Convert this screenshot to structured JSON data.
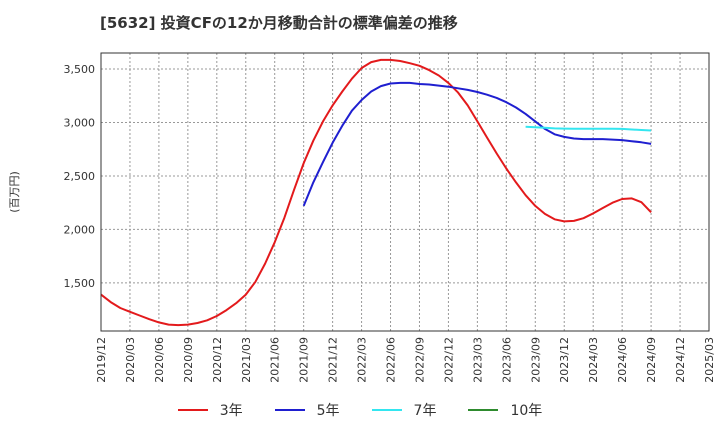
{
  "chart_data": {
    "type": "line",
    "title": "[5632]  投資CFの12か月移動合計の標準偏差の推移",
    "ylabel": "(百万円)",
    "xlabel": "",
    "ylim": [
      1050,
      3650
    ],
    "yticks": [
      1500,
      2000,
      2500,
      3000,
      3500
    ],
    "ytick_labels": [
      "1,500",
      "2,000",
      "2,500",
      "3,000",
      "3,500"
    ],
    "xticks": [
      "2019/12",
      "2020/03",
      "2020/06",
      "2020/09",
      "2020/12",
      "2021/03",
      "2021/06",
      "2021/09",
      "2021/12",
      "2022/03",
      "2022/06",
      "2022/09",
      "2022/12",
      "2023/03",
      "2023/06",
      "2023/09",
      "2023/12",
      "2024/03",
      "2024/06",
      "2024/09",
      "2024/12",
      "2025/03"
    ],
    "grid": true,
    "legend_position": "bottom",
    "series": [
      {
        "name": "3年",
        "color": "#e31a1c",
        "x": [
          "2019/12",
          "2020/01",
          "2020/02",
          "2020/03",
          "2020/04",
          "2020/05",
          "2020/06",
          "2020/07",
          "2020/08",
          "2020/09",
          "2020/10",
          "2020/11",
          "2020/12",
          "2021/01",
          "2021/02",
          "2021/03",
          "2021/04",
          "2021/05",
          "2021/06",
          "2021/07",
          "2021/08",
          "2021/09",
          "2021/10",
          "2021/11",
          "2021/12",
          "2022/01",
          "2022/02",
          "2022/03",
          "2022/04",
          "2022/05",
          "2022/06",
          "2022/07",
          "2022/08",
          "2022/09",
          "2022/10",
          "2022/11",
          "2022/12",
          "2023/01",
          "2023/02",
          "2023/03",
          "2023/04",
          "2023/05",
          "2023/06",
          "2023/07",
          "2023/08",
          "2023/09",
          "2023/10",
          "2023/11",
          "2023/12",
          "2024/01",
          "2024/02",
          "2024/03",
          "2024/04",
          "2024/05",
          "2024/06",
          "2024/07",
          "2024/08",
          "2024/09"
        ],
        "values": [
          1390,
          1320,
          1265,
          1230,
          1195,
          1160,
          1130,
          1110,
          1105,
          1110,
          1125,
          1150,
          1190,
          1245,
          1310,
          1390,
          1510,
          1680,
          1880,
          2110,
          2370,
          2620,
          2830,
          3010,
          3160,
          3290,
          3410,
          3510,
          3565,
          3585,
          3585,
          3575,
          3555,
          3530,
          3490,
          3440,
          3370,
          3280,
          3160,
          3010,
          2860,
          2710,
          2570,
          2440,
          2320,
          2220,
          2145,
          2095,
          2075,
          2080,
          2105,
          2150,
          2200,
          2250,
          2285,
          2290,
          2255,
          2160
        ]
      },
      {
        "name": "5年",
        "color": "#1f1fd0",
        "x": [
          "2021/09",
          "2021/10",
          "2021/11",
          "2021/12",
          "2022/01",
          "2022/02",
          "2022/03",
          "2022/04",
          "2022/05",
          "2022/06",
          "2022/07",
          "2022/08",
          "2022/09",
          "2022/10",
          "2022/11",
          "2022/12",
          "2023/01",
          "2023/02",
          "2023/03",
          "2023/04",
          "2023/05",
          "2023/06",
          "2023/07",
          "2023/08",
          "2023/09",
          "2023/10",
          "2023/11",
          "2023/12",
          "2024/01",
          "2024/02",
          "2024/03",
          "2024/04",
          "2024/05",
          "2024/06",
          "2024/07",
          "2024/08",
          "2024/09"
        ],
        "values": [
          2220,
          2440,
          2630,
          2810,
          2970,
          3110,
          3210,
          3290,
          3340,
          3365,
          3370,
          3370,
          3360,
          3355,
          3345,
          3335,
          3320,
          3305,
          3285,
          3260,
          3230,
          3190,
          3140,
          3080,
          3010,
          2940,
          2890,
          2865,
          2850,
          2845,
          2845,
          2845,
          2840,
          2835,
          2825,
          2815,
          2800
        ]
      },
      {
        "name": "7年",
        "color": "#33e6f0",
        "x": [
          "2023/08",
          "2023/09",
          "2023/10",
          "2023/11",
          "2023/12",
          "2024/01",
          "2024/02",
          "2024/03",
          "2024/04",
          "2024/05",
          "2024/06",
          "2024/07",
          "2024/08",
          "2024/09"
        ],
        "values": [
          2960,
          2955,
          2950,
          2945,
          2943,
          2942,
          2942,
          2942,
          2942,
          2942,
          2940,
          2935,
          2930,
          2925
        ]
      },
      {
        "name": "10年",
        "color": "#2e8b2e",
        "x": [],
        "values": []
      }
    ]
  }
}
